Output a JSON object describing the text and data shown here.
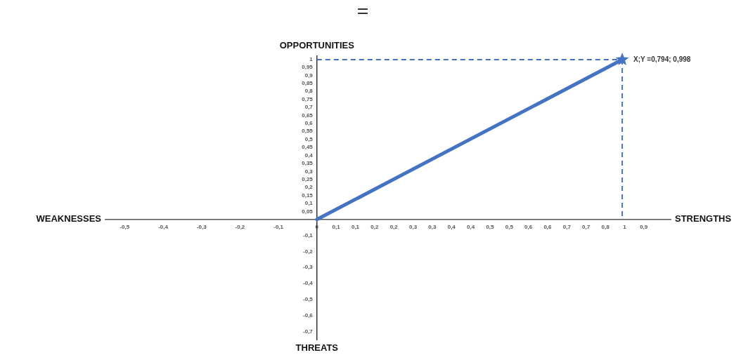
{
  "chart_data": {
    "type": "line",
    "x": [
      0,
      0.794
    ],
    "series": [
      {
        "color": "#4472c4",
        "values": [
          0,
          0.998
        ]
      }
    ],
    "marker": "star",
    "xlim": [
      -0.55,
      0.92
    ],
    "xticks": [
      {
        "value": -0.5,
        "label": "-0,5"
      },
      {
        "value": -0.4,
        "label": "-0,4"
      },
      {
        "value": -0.3,
        "label": "-0,3"
      },
      {
        "value": -0.2,
        "label": "-0,2"
      },
      {
        "value": -0.1,
        "label": "-0,1"
      },
      0,
      {
        "value": 0.05,
        "label": "0,1"
      },
      {
        "value": 0.1,
        "label": "0,1"
      },
      {
        "value": 0.15,
        "label": "0,2"
      },
      {
        "value": 0.2,
        "label": "0,2"
      },
      {
        "value": 0.25,
        "label": "0,3"
      },
      {
        "value": 0.3,
        "label": "0,3"
      },
      {
        "value": 0.35,
        "label": "0,4"
      },
      {
        "value": 0.4,
        "label": "0,4"
      },
      {
        "value": 0.45,
        "label": "0,5"
      },
      {
        "value": 0.5,
        "label": "0,5"
      },
      {
        "value": 0.55,
        "label": "0,6"
      },
      {
        "value": 0.6,
        "label": "0,6"
      },
      {
        "value": 0.65,
        "label": "0,7"
      },
      {
        "value": 0.7,
        "label": "0,7"
      },
      {
        "value": 0.75,
        "label": "0,8"
      },
      {
        "value": 0.8,
        "label": "1"
      },
      {
        "value": 0.85,
        "label": "0,9"
      }
    ],
    "ylim": [
      -0.75,
      1.02
    ],
    "yticks": [
      {
        "value": -0.7,
        "label": "-0,7"
      },
      {
        "value": -0.6,
        "label": "-0,6"
      },
      {
        "value": -0.5,
        "label": "-0,5"
      },
      {
        "value": -0.4,
        "label": "-0,4"
      },
      {
        "value": -0.3,
        "label": "-0,3"
      },
      {
        "value": -0.2,
        "label": "-0,2"
      },
      {
        "value": -0.1,
        "label": "-0,1"
      },
      {
        "value": 0.05,
        "label": "0,05"
      },
      {
        "value": 0.1,
        "label": "0,1"
      },
      {
        "value": 0.15,
        "label": "0,15"
      },
      {
        "value": 0.2,
        "label": "0,2"
      },
      {
        "value": 0.25,
        "label": "0,25"
      },
      {
        "value": 0.3,
        "label": "0,3"
      },
      {
        "value": 0.35,
        "label": "0,35"
      },
      {
        "value": 0.4,
        "label": "0,4"
      },
      {
        "value": 0.45,
        "label": "0,45"
      },
      {
        "value": 0.5,
        "label": "0,5"
      },
      {
        "value": 0.55,
        "label": "0,55"
      },
      {
        "value": 0.6,
        "label": "0,6"
      },
      {
        "value": 0.65,
        "label": "0,65"
      },
      {
        "value": 0.7,
        "label": "0,7"
      },
      {
        "value": 0.75,
        "label": "0,75"
      },
      {
        "value": 0.8,
        "label": "0,8"
      },
      {
        "value": 0.85,
        "label": "0,85"
      },
      {
        "value": 0.9,
        "label": "0,9"
      },
      {
        "value": 0.95,
        "label": "0,95"
      },
      1
    ],
    "ref_lines": [
      {
        "axis": "y",
        "value": 0.998,
        "color": "#4472c4",
        "line_style": "dashed"
      },
      {
        "axis": "x",
        "value": 0.794,
        "color": "#4472c4",
        "line_style": "dashed"
      }
    ],
    "annotations": [
      "STRENGTHS",
      "WEAKNESSES",
      "OPPORTUNITIES",
      "THREATS",
      {
        "text": "X;Y =0,794; 0,998",
        "x": 0.794,
        "y": 0.998
      }
    ],
    "grid": false,
    "legend": false
  }
}
